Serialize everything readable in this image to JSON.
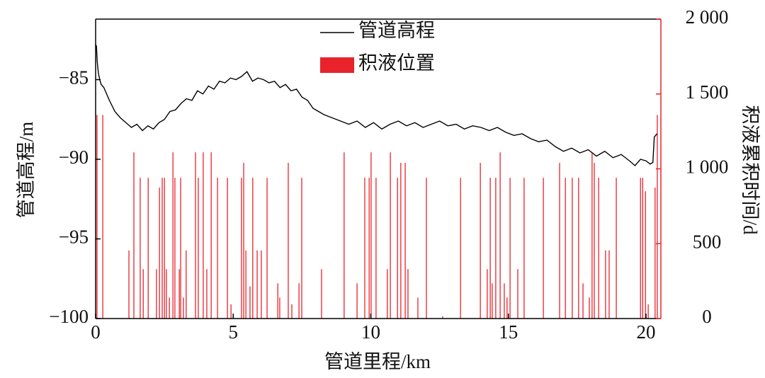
{
  "chart_data": {
    "type": "combo",
    "x_label": "管道里程/km",
    "y_label": "管道高程/m",
    "y2_label": "积液累积时间/d",
    "xlim": [
      0,
      20.54
    ],
    "xticks": [
      0,
      5,
      10,
      15,
      20
    ],
    "ylim": [
      -100,
      -81.2
    ],
    "yticks": [
      {
        "value": -100,
        "label": "−100"
      },
      {
        "value": -95,
        "label": "−95"
      },
      {
        "value": -90,
        "label": "−90"
      },
      {
        "value": -85,
        "label": "−85"
      }
    ],
    "y2lim": [
      0,
      2000
    ],
    "y2ticks": [
      0,
      500,
      {
        "value": 1000,
        "label": "1 000"
      },
      {
        "value": 1500,
        "label": "1 500"
      },
      {
        "value": 2000,
        "label": "2 000"
      }
    ],
    "legend": "upper center",
    "series": [
      {
        "name": "管道高程",
        "type": "line",
        "color": "#000000",
        "x": [
          0,
          0.03,
          0.06,
          0.1,
          0.15,
          0.2,
          0.3,
          0.5,
          0.7,
          0.9,
          1.1,
          1.3,
          1.5,
          1.7,
          1.9,
          2.1,
          2.3,
          2.5,
          2.7,
          2.9,
          3.1,
          3.3,
          3.5,
          3.7,
          3.9,
          4.1,
          4.3,
          4.5,
          4.7,
          4.9,
          5.1,
          5.3,
          5.5,
          5.7,
          5.9,
          6.1,
          6.3,
          6.5,
          6.7,
          6.9,
          7.1,
          7.3,
          7.5,
          7.7,
          7.9,
          8.1,
          8.3,
          8.6,
          8.9,
          9.2,
          9.5,
          9.8,
          10.1,
          10.4,
          10.7,
          11.0,
          11.3,
          11.6,
          11.9,
          12.2,
          12.5,
          12.8,
          13.1,
          13.4,
          13.7,
          14.0,
          14.3,
          14.6,
          14.9,
          15.2,
          15.5,
          15.8,
          16.1,
          16.4,
          16.7,
          17.0,
          17.3,
          17.6,
          17.9,
          18.2,
          18.5,
          18.8,
          19.1,
          19.4,
          19.6,
          19.8,
          20.0,
          20.15,
          20.25,
          20.3,
          20.4
        ],
        "values": [
          -82.8,
          -82.9,
          -83.9,
          -84.6,
          -85.0,
          -85.3,
          -85.5,
          -86.3,
          -87.0,
          -87.4,
          -87.7,
          -88.0,
          -87.8,
          -88.2,
          -87.9,
          -88.1,
          -87.7,
          -87.5,
          -87.0,
          -86.9,
          -86.5,
          -86.2,
          -86.3,
          -85.7,
          -85.9,
          -85.4,
          -85.6,
          -85.1,
          -85.2,
          -84.9,
          -85.0,
          -84.8,
          -84.5,
          -85.1,
          -84.9,
          -85.0,
          -85.2,
          -85.1,
          -85.5,
          -85.3,
          -85.7,
          -85.6,
          -86.1,
          -86.3,
          -86.8,
          -87.0,
          -87.2,
          -87.4,
          -87.6,
          -87.8,
          -87.6,
          -88.0,
          -87.7,
          -88.1,
          -87.8,
          -87.6,
          -87.9,
          -87.7,
          -88.0,
          -87.8,
          -87.6,
          -87.9,
          -87.8,
          -88.1,
          -87.9,
          -88.0,
          -88.2,
          -88.0,
          -88.3,
          -88.5,
          -88.4,
          -88.7,
          -88.9,
          -88.8,
          -89.2,
          -89.5,
          -89.3,
          -89.6,
          -89.4,
          -89.8,
          -89.5,
          -89.9,
          -89.7,
          -90.1,
          -90.4,
          -90.0,
          -90.1,
          -90.3,
          -90.2,
          -88.6,
          -88.4
        ]
      },
      {
        "name": "积液位置",
        "type": "bar",
        "axis": "y2",
        "color": "#e8232b",
        "x": [
          0.05,
          0.26,
          1.21,
          1.39,
          1.62,
          1.73,
          1.91,
          2.21,
          2.32,
          2.42,
          2.5,
          2.57,
          2.68,
          2.81,
          2.88,
          3.04,
          3.09,
          3.19,
          3.29,
          3.63,
          3.73,
          3.91,
          4.04,
          4.2,
          4.43,
          4.79,
          4.92,
          5.3,
          5.38,
          5.46,
          5.61,
          5.71,
          5.87,
          6.02,
          6.23,
          6.62,
          6.69,
          7.0,
          7.13,
          7.39,
          7.49,
          8.21,
          9.03,
          9.5,
          9.78,
          9.94,
          10.01,
          10.19,
          10.6,
          10.71,
          10.97,
          11.09,
          11.25,
          11.35,
          11.71,
          12.02,
          12.61,
          13.26,
          13.98,
          14.23,
          14.34,
          14.41,
          14.54,
          14.7,
          14.85,
          14.95,
          15.06,
          15.34,
          15.57,
          16.27,
          16.86,
          17.07,
          17.32,
          17.55,
          17.71,
          17.94,
          18.04,
          18.12,
          18.28,
          18.53,
          18.66,
          18.92,
          19.8,
          19.88,
          19.98,
          20.08,
          20.33,
          20.41
        ],
        "values": [
          1360,
          1360,
          455,
          1110,
          940,
          330,
          940,
          330,
          875,
          940,
          940,
          330,
          140,
          1110,
          940,
          330,
          940,
          140,
          455,
          1110,
          940,
          1110,
          330,
          1110,
          940,
          940,
          95,
          940,
          1040,
          455,
          215,
          940,
          455,
          455,
          940,
          235,
          140,
          1040,
          95,
          235,
          940,
          330,
          1110,
          235,
          940,
          940,
          1110,
          940,
          330,
          1110,
          940,
          1040,
          1040,
          330,
          140,
          940,
          15,
          940,
          1040,
          330,
          940,
          235,
          940,
          1110,
          235,
          140,
          940,
          330,
          940,
          940,
          1040,
          940,
          940,
          940,
          235,
          140,
          1110,
          1040,
          940,
          455,
          455,
          940,
          940,
          940,
          850,
          95,
          875,
          1360
        ]
      }
    ]
  }
}
